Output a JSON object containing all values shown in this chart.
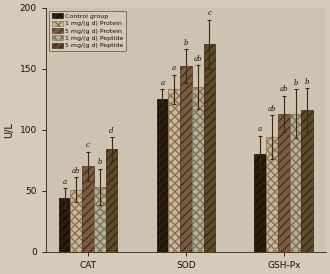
{
  "groups": [
    "CAT",
    "SOD",
    "GSH-Px"
  ],
  "series_labels": [
    "Control group",
    "1 mg/(g d) Protein",
    "5 mg/(g d) Protein",
    "1 mg/(g d) Peptide",
    "5 mg/(g d) Peptide"
  ],
  "values": [
    [
      44,
      125,
      80
    ],
    [
      51,
      133,
      94
    ],
    [
      70,
      152,
      113
    ],
    [
      53,
      135,
      113
    ],
    [
      84,
      170,
      116
    ]
  ],
  "errors": [
    [
      8,
      8,
      15
    ],
    [
      10,
      12,
      18
    ],
    [
      12,
      14,
      15
    ],
    [
      15,
      18,
      20
    ],
    [
      10,
      20,
      18
    ]
  ],
  "letter_labels": [
    [
      "a",
      "a",
      "a"
    ],
    [
      "ab",
      "a",
      "ab"
    ],
    [
      "c",
      "b",
      "ab"
    ],
    [
      "b",
      "ab",
      "b"
    ],
    [
      "d",
      "c",
      "b"
    ]
  ],
  "ylim": [
    0,
    200
  ],
  "yticks": [
    0,
    50,
    100,
    150,
    200
  ],
  "ylabel": "U/L",
  "background_color": "#d6cabb",
  "plot_bg_color": "#cec2b2",
  "bar_facecolors": [
    "#2a1d0e",
    "#c8b89a",
    "#7a5c42",
    "#b8b090",
    "#5c4a28"
  ],
  "bar_edgecolors": [
    "#1a0e04",
    "#8a7050",
    "#4a3020",
    "#787060",
    "#3a2810"
  ],
  "hatch_patterns": [
    "////",
    "xxxx",
    "////",
    "xxxx",
    "////"
  ],
  "bar_width": 0.12,
  "group_positions": [
    0,
    1,
    2
  ]
}
